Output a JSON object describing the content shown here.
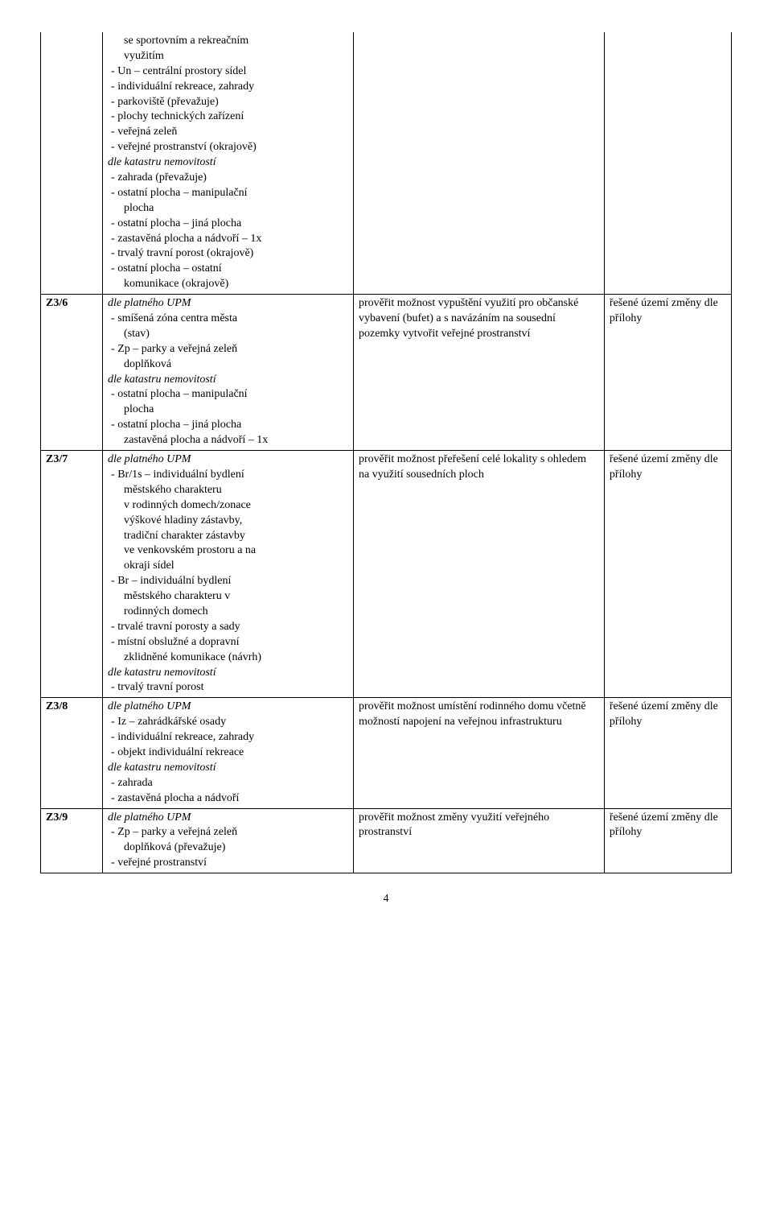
{
  "page_number": "4",
  "rows": [
    {
      "id": "",
      "desc": [
        {
          "t": "  se sportovním a rekreačním",
          "cls": "indent2"
        },
        {
          "t": "  využitím",
          "cls": "indent2"
        },
        {
          "t": "- Un – centrální prostory sídel",
          "cls": "indent1"
        },
        {
          "t": "- individuální rekreace, zahrady",
          "cls": "indent1"
        },
        {
          "t": "- parkoviště (převažuje)",
          "cls": "indent1"
        },
        {
          "t": "- plochy technických zařízení",
          "cls": "indent1"
        },
        {
          "t": "- veřejná zeleň",
          "cls": "indent1"
        },
        {
          "t": "- veřejné prostranství (okrajově)",
          "cls": "indent1"
        },
        {
          "t": "dle katastru nemovitostí",
          "cls": "italic"
        },
        {
          "t": "- zahrada (převažuje)",
          "cls": "indent1"
        },
        {
          "t": "- ostatní plocha – manipulační",
          "cls": "indent1"
        },
        {
          "t": "  plocha",
          "cls": "indent2"
        },
        {
          "t": "- ostatní plocha – jiná plocha",
          "cls": "indent1"
        },
        {
          "t": "- zastavěná plocha a nádvoří – 1x",
          "cls": "indent1"
        },
        {
          "t": "- trvalý travní porost (okrajově)",
          "cls": "indent1"
        },
        {
          "t": "- ostatní plocha – ostatní",
          "cls": "indent1"
        },
        {
          "t": "  komunikace (okrajově)",
          "cls": "indent2"
        }
      ],
      "note": [],
      "area": []
    },
    {
      "id": "Z3/6",
      "desc": [
        {
          "t": "dle platného UPM",
          "cls": "italic"
        },
        {
          "t": "- smíšená zóna centra města",
          "cls": "indent1"
        },
        {
          "t": "  (stav)",
          "cls": "indent2"
        },
        {
          "t": "- Zp – parky a veřejná zeleň",
          "cls": "indent1"
        },
        {
          "t": "  doplňková",
          "cls": "indent2"
        },
        {
          "t": "dle katastru nemovitostí",
          "cls": "italic"
        },
        {
          "t": "- ostatní plocha – manipulační",
          "cls": "indent1"
        },
        {
          "t": "  plocha",
          "cls": "indent2"
        },
        {
          "t": "- ostatní plocha – jiná plocha",
          "cls": "indent1"
        },
        {
          "t": "  zastavěná plocha a nádvoří – 1x",
          "cls": "indent2"
        }
      ],
      "note": [
        {
          "t": "prověřit možnost vypuštění využití pro občanské vybavení (bufet) a s navázáním na sousední pozemky vytvořit veřejné prostranství",
          "cls": ""
        }
      ],
      "area": [
        {
          "t": "řešené území změny dle přílohy",
          "cls": ""
        }
      ]
    },
    {
      "id": "Z3/7",
      "desc": [
        {
          "t": "dle platného UPM",
          "cls": "italic"
        },
        {
          "t": "- Br/1s – individuální bydlení",
          "cls": "indent1"
        },
        {
          "t": "  městského charakteru",
          "cls": "indent2"
        },
        {
          "t": "  v rodinných domech/zonace",
          "cls": "indent2"
        },
        {
          "t": "  výškové hladiny zástavby,",
          "cls": "indent2"
        },
        {
          "t": "  tradiční charakter zástavby",
          "cls": "indent2"
        },
        {
          "t": "  ve venkovském prostoru a na",
          "cls": "indent2"
        },
        {
          "t": "  okraji sídel",
          "cls": "indent2"
        },
        {
          "t": "- Br – individuální bydlení",
          "cls": "indent1"
        },
        {
          "t": "  městského charakteru v",
          "cls": "indent2"
        },
        {
          "t": "  rodinných domech",
          "cls": "indent2"
        },
        {
          "t": "- trvalé travní porosty a sady",
          "cls": "indent1"
        },
        {
          "t": "- místní obslužné a dopravní",
          "cls": "indent1"
        },
        {
          "t": "  zklidněné komunikace (návrh)",
          "cls": "indent2"
        },
        {
          "t": "dle katastru nemovitostí",
          "cls": "italic"
        },
        {
          "t": "- trvalý travní porost",
          "cls": "indent1"
        }
      ],
      "note": [
        {
          "t": "prověřit možnost přeřešení celé lokality s ohledem na využití sousedních ploch",
          "cls": ""
        }
      ],
      "area": [
        {
          "t": "řešené území změny dle přílohy",
          "cls": ""
        }
      ]
    },
    {
      "id": "Z3/8",
      "desc": [
        {
          "t": "dle platného UPM",
          "cls": "italic"
        },
        {
          "t": "- Iz – zahrádkářské osady",
          "cls": "indent1"
        },
        {
          "t": "- individuální rekreace, zahrady",
          "cls": "indent1"
        },
        {
          "t": "- objekt individuální rekreace",
          "cls": "indent1"
        },
        {
          "t": "dle katastru nemovitostí",
          "cls": "italic"
        },
        {
          "t": "- zahrada",
          "cls": "indent1"
        },
        {
          "t": "- zastavěná plocha a nádvoří",
          "cls": "indent1"
        }
      ],
      "note": [
        {
          "t": "prověřit možnost umístění rodinného domu včetně možností napojení na veřejnou infrastrukturu",
          "cls": ""
        }
      ],
      "area": [
        {
          "t": "řešené území změny dle přílohy",
          "cls": ""
        }
      ]
    },
    {
      "id": "Z3/9",
      "desc": [
        {
          "t": "dle platného UPM",
          "cls": "italic"
        },
        {
          "t": "- Zp – parky a veřejná zeleň",
          "cls": "indent1"
        },
        {
          "t": "  doplňková (převažuje)",
          "cls": "indent2"
        },
        {
          "t": "- veřejné prostranství",
          "cls": "indent1"
        }
      ],
      "note": [
        {
          "t": "prověřit možnost změny využití veřejného prostranství",
          "cls": ""
        }
      ],
      "area": [
        {
          "t": "řešené území změny dle přílohy",
          "cls": ""
        }
      ]
    }
  ]
}
